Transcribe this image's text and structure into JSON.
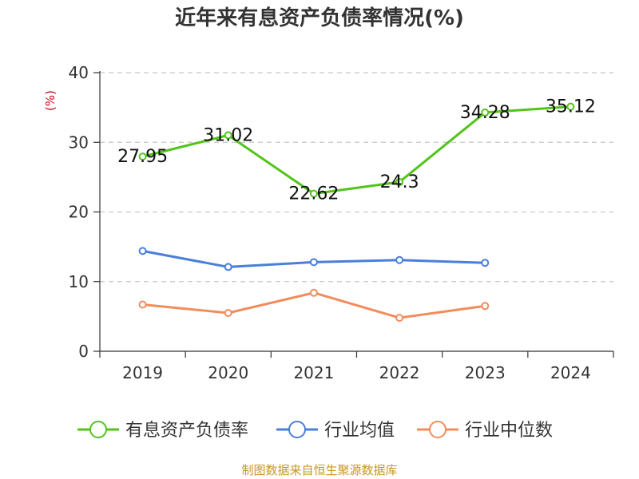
{
  "chart_data": {
    "type": "line",
    "title": "近年来有息资产负债率情况(%)",
    "ylabel": "(%)",
    "xlabel": "",
    "categories": [
      "2019",
      "2020",
      "2021",
      "2022",
      "2023",
      "2024"
    ],
    "ylim": [
      0,
      40
    ],
    "yticks": [
      0,
      10,
      20,
      30,
      40
    ],
    "grid": true,
    "legend_position": "bottom",
    "series": [
      {
        "name": "有息资产负债率",
        "color": "#52c41a",
        "values": [
          27.95,
          31.02,
          22.62,
          24.3,
          34.28,
          35.12
        ],
        "labels": [
          "27.95",
          "31.02",
          "22.62",
          "24.3",
          "34.28",
          "35.12"
        ]
      },
      {
        "name": "行业均值",
        "color": "#4a7fd9",
        "values": [
          14.4,
          12.1,
          12.8,
          13.1,
          12.7,
          null
        ]
      },
      {
        "name": "行业中位数",
        "color": "#f28c5a",
        "values": [
          6.7,
          5.5,
          8.4,
          4.8,
          6.5,
          null
        ]
      }
    ]
  },
  "footer": {
    "source": "制图数据来自恒生聚源数据库"
  }
}
